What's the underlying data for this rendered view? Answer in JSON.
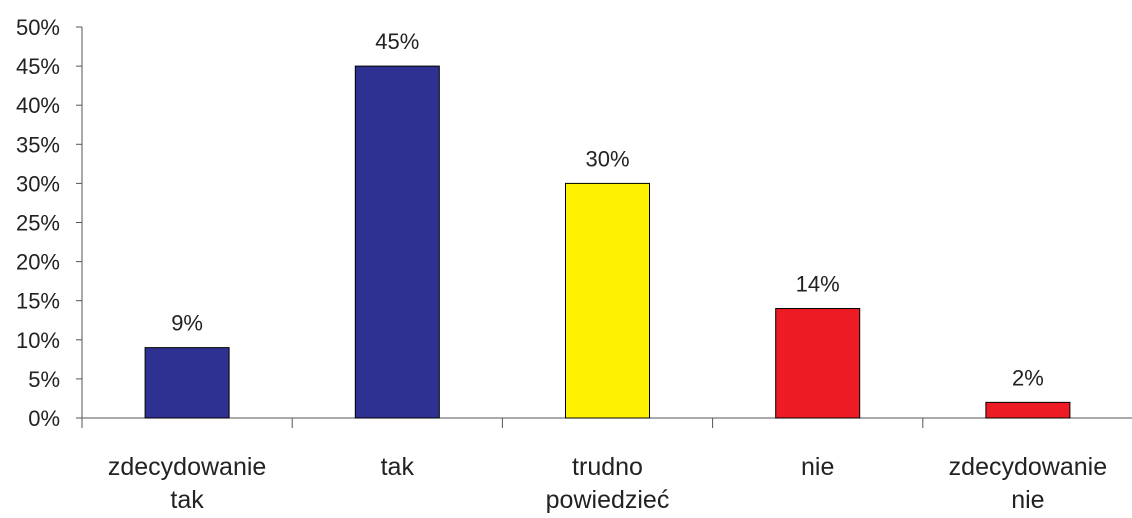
{
  "chart_data": {
    "type": "bar",
    "title": "",
    "xlabel": "",
    "ylabel": "",
    "ylim": [
      0,
      50
    ],
    "ytick_step": 5,
    "ytick_labels": [
      "0%",
      "5%",
      "10%",
      "15%",
      "20%",
      "25%",
      "30%",
      "35%",
      "40%",
      "45%",
      "50%"
    ],
    "grid": false,
    "legend": "none",
    "categories": [
      [
        "zdecydowanie",
        "tak"
      ],
      [
        "tak"
      ],
      [
        "trudno",
        "powiedzieć"
      ],
      [
        "nie"
      ],
      [
        "zdecydowanie",
        "nie"
      ]
    ],
    "values": [
      9,
      45,
      30,
      14,
      2
    ],
    "data_labels": [
      "9%",
      "45%",
      "30%",
      "14%",
      "2%"
    ],
    "bar_colors": [
      "#2e3192",
      "#2e3192",
      "#fff200",
      "#ed1c24",
      "#ed1c24"
    ]
  }
}
